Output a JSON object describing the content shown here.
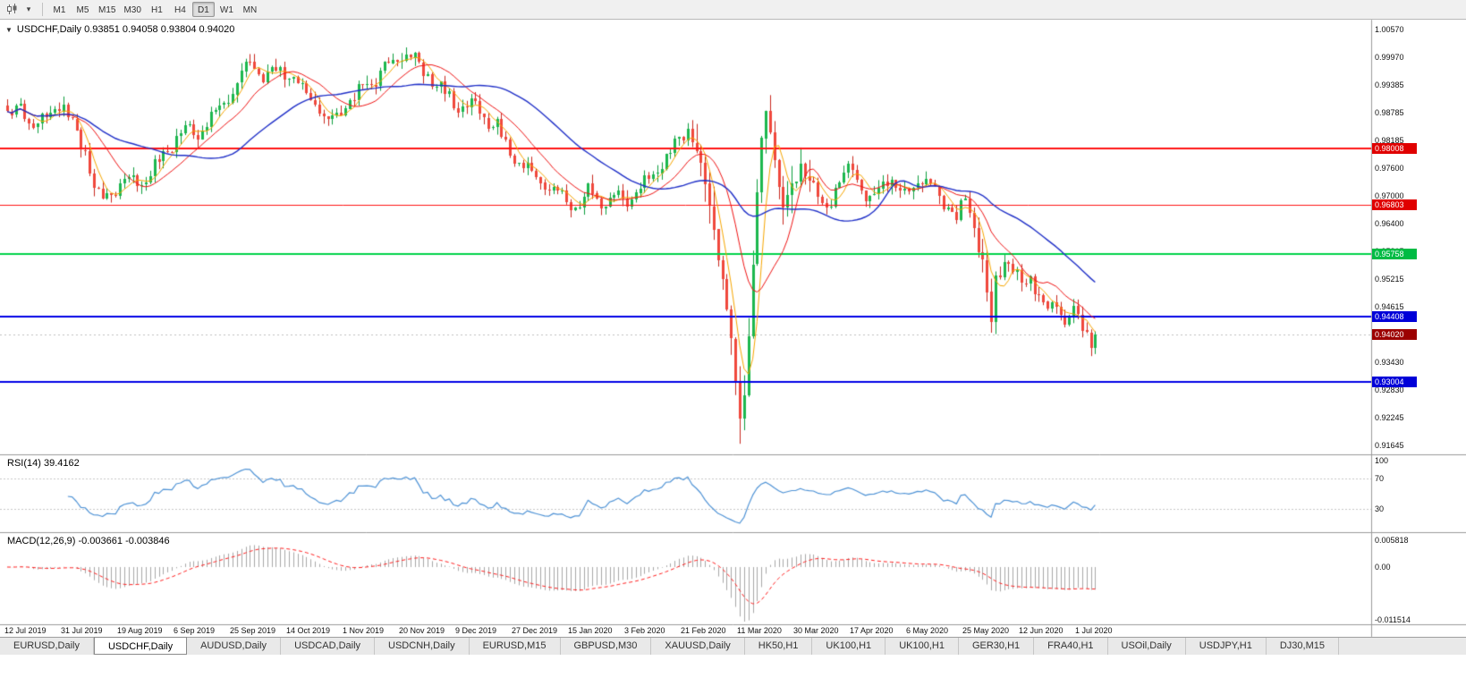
{
  "icons": {
    "one_click_toggle": "▼",
    "chart_type_dropdown": "▾"
  },
  "toolbar": {
    "timeframes": [
      {
        "label": "M1",
        "active": false
      },
      {
        "label": "M5",
        "active": false
      },
      {
        "label": "M15",
        "active": false
      },
      {
        "label": "M30",
        "active": false
      },
      {
        "label": "H1",
        "active": false
      },
      {
        "label": "H4",
        "active": false
      },
      {
        "label": "D1",
        "active": true
      },
      {
        "label": "W1",
        "active": false
      },
      {
        "label": "MN",
        "active": false
      }
    ]
  },
  "main_chart": {
    "title": "USDCHF,Daily 0.93851 0.94058 0.93804 0.94020",
    "ohlc": {
      "open": "0.93851",
      "high": "0.94058",
      "low": "0.93804",
      "close": "0.94020"
    },
    "price_axis_labels": [
      "1.00570",
      "0.99970",
      "0.99385",
      "0.98785",
      "0.98185",
      "0.97600",
      "0.97000",
      "0.96400",
      "0.95815",
      "0.95215",
      "0.94615",
      "0.94020",
      "0.93430",
      "0.92830",
      "0.92245",
      "0.91645"
    ],
    "hlines": [
      {
        "label": "0.98008",
        "price": 0.98008,
        "line": "#ff1414",
        "tag": "#e00000",
        "width": 2
      },
      {
        "label": "0.96803",
        "price": 0.96803,
        "line": "#ff1414",
        "tag": "#e00000",
        "width": 1
      },
      {
        "label": "0.95758",
        "price": 0.95758,
        "line": "#00d24a",
        "tag": "#00bb44",
        "width": 2
      },
      {
        "label": "0.94408",
        "price": 0.94408,
        "line": "#0000e6",
        "tag": "#0000d8",
        "width": 2
      },
      {
        "label": "0.93004",
        "price": 0.93004,
        "line": "#0000e6",
        "tag": "#0000d8",
        "width": 2
      }
    ],
    "current_price": {
      "label": "0.94020",
      "price": 0.9402,
      "tag": "#9c0000"
    }
  },
  "rsi_panel": {
    "label": "RSI(14) 39.4162",
    "axis_labels": [
      "100",
      "70",
      "30"
    ],
    "levels": [
      70,
      30
    ],
    "current": 39.4162
  },
  "macd_panel": {
    "label": "MACD(12,26,9) -0.003661 -0.003846",
    "axis_labels": [
      "0.005818",
      "0.00",
      "-0.011514"
    ],
    "current_macd": -0.003661,
    "current_signal": -0.003846
  },
  "date_axis": {
    "labels": [
      "12 Jul 2019",
      "31 Jul 2019",
      "19 Aug 2019",
      "6 Sep 2019",
      "25 Sep 2019",
      "14 Oct 2019",
      "1 Nov 2019",
      "20 Nov 2019",
      "9 Dec 2019",
      "27 Dec 2019",
      "15 Jan 2020",
      "3 Feb 2020",
      "21 Feb 2020",
      "11 Mar 2020",
      "30 Mar 2020",
      "17 Apr 2020",
      "6 May 2020",
      "25 May 2020",
      "12 Jun 2020",
      "1 Jul 2020"
    ]
  },
  "tabs": [
    {
      "label": "EURUSD,Daily",
      "active": false
    },
    {
      "label": "USDCHF,Daily",
      "active": true
    },
    {
      "label": "AUDUSD,Daily",
      "active": false
    },
    {
      "label": "USDCAD,Daily",
      "active": false
    },
    {
      "label": "USDCNH,Daily",
      "active": false
    },
    {
      "label": "EURUSD,M15",
      "active": false
    },
    {
      "label": "GBPUSD,M30",
      "active": false
    },
    {
      "label": "XAUUSD,Daily",
      "active": false
    },
    {
      "label": "HK50,H1",
      "active": false
    },
    {
      "label": "UK100,H1",
      "active": false
    },
    {
      "label": "UK100,H1",
      "active": false
    },
    {
      "label": "GER30,H1",
      "active": false
    },
    {
      "label": "FRA40,H1",
      "active": false
    },
    {
      "label": "USOil,Daily",
      "active": false
    },
    {
      "label": "USDJPY,H1",
      "active": false
    },
    {
      "label": "DJ30,M15",
      "active": false
    }
  ],
  "colors": {
    "up_candle": "#1cb84e",
    "up_wick": "#0d9e3e",
    "down_candle": "#f0483c",
    "down_wick": "#c9281e",
    "ma_fast": "#f7a600",
    "ma_mid": "#f01414",
    "ma_slow": "#2030c8",
    "rsi_line": "#4f93d6",
    "rsi_level": "#c8c8c8",
    "macd_hist": "#a8a8a8",
    "macd_signal": "#ff2020",
    "separator": "#9a9a9a",
    "current_line": "#c0c0c0"
  },
  "chart_data": [
    {
      "type": "candlestick",
      "title": "USDCHF Daily",
      "ylim": [
        0.91645,
        1.0057
      ],
      "candle_count": 252,
      "candles_per_label": 13,
      "last_ohlc": [
        0.93851,
        0.94058,
        0.93804,
        0.9402
      ],
      "crash_low": 0.9168,
      "close_anchors": [
        [
          0,
          0.987
        ],
        [
          3,
          0.9888
        ],
        [
          6,
          0.9845
        ],
        [
          9,
          0.9862
        ],
        [
          12,
          0.99
        ],
        [
          15,
          0.9855
        ],
        [
          18,
          0.9795
        ],
        [
          20,
          0.9718
        ],
        [
          22,
          0.9692
        ],
        [
          25,
          0.9715
        ],
        [
          28,
          0.9742
        ],
        [
          31,
          0.9728
        ],
        [
          34,
          0.9762
        ],
        [
          38,
          0.9812
        ],
        [
          41,
          0.9848
        ],
        [
          44,
          0.9828
        ],
        [
          47,
          0.987
        ],
        [
          50,
          0.9902
        ],
        [
          53,
          0.9942
        ],
        [
          56,
          0.9996
        ],
        [
          59,
          0.995
        ],
        [
          62,
          0.9972
        ],
        [
          65,
          0.9955
        ],
        [
          68,
          0.9932
        ],
        [
          71,
          0.9895
        ],
        [
          74,
          0.986
        ],
        [
          77,
          0.9882
        ],
        [
          80,
          0.9908
        ],
        [
          83,
          0.994
        ],
        [
          86,
          0.9962
        ],
        [
          89,
          0.999
        ],
        [
          92,
          1.0005
        ],
        [
          95,
          0.9978
        ],
        [
          98,
          0.9946
        ],
        [
          101,
          0.9922
        ],
        [
          104,
          0.989
        ],
        [
          107,
          0.99
        ],
        [
          110,
          0.987
        ],
        [
          113,
          0.985
        ],
        [
          116,
          0.979
        ],
        [
          119,
          0.9766
        ],
        [
          122,
          0.974
        ],
        [
          125,
          0.972
        ],
        [
          128,
          0.9696
        ],
        [
          131,
          0.967
        ],
        [
          134,
          0.971
        ],
        [
          137,
          0.9686
        ],
        [
          140,
          0.97
        ],
        [
          143,
          0.969
        ],
        [
          146,
          0.972
        ],
        [
          149,
          0.9746
        ],
        [
          152,
          0.9786
        ],
        [
          155,
          0.9822
        ],
        [
          157,
          0.9843
        ],
        [
          159,
          0.9803
        ],
        [
          161,
          0.9722
        ],
        [
          163,
          0.9632
        ],
        [
          165,
          0.9522
        ],
        [
          167,
          0.9392
        ],
        [
          168,
          0.9298
        ],
        [
          169,
          0.9226
        ],
        [
          170,
          0.9272
        ],
        [
          171,
          0.9402
        ],
        [
          172,
          0.9555
        ],
        [
          173,
          0.9702
        ],
        [
          174,
          0.9822
        ],
        [
          175,
          0.9882
        ],
        [
          176,
          0.984
        ],
        [
          177,
          0.978
        ],
        [
          178,
          0.972
        ],
        [
          179,
          0.967
        ],
        [
          181,
          0.972
        ],
        [
          183,
          0.977
        ],
        [
          185,
          0.9736
        ],
        [
          187,
          0.9696
        ],
        [
          189,
          0.967
        ],
        [
          191,
          0.9716
        ],
        [
          193,
          0.974
        ],
        [
          195,
          0.9756
        ],
        [
          197,
          0.972
        ],
        [
          199,
          0.9686
        ],
        [
          201,
          0.971
        ],
        [
          203,
          0.974
        ],
        [
          205,
          0.972
        ],
        [
          207,
          0.9696
        ],
        [
          209,
          0.9716
        ],
        [
          211,
          0.974
        ],
        [
          213,
          0.9726
        ],
        [
          215,
          0.97
        ],
        [
          217,
          0.968
        ],
        [
          219,
          0.9652
        ],
        [
          221,
          0.969
        ],
        [
          223,
          0.964
        ],
        [
          225,
          0.9556
        ],
        [
          226,
          0.9482
        ],
        [
          227,
          0.9425
        ],
        [
          228,
          0.9525
        ],
        [
          230,
          0.956
        ],
        [
          232,
          0.954
        ],
        [
          234,
          0.951
        ],
        [
          236,
          0.953
        ],
        [
          238,
          0.9482
        ],
        [
          240,
          0.945
        ],
        [
          242,
          0.947
        ],
        [
          244,
          0.943
        ],
        [
          246,
          0.9452
        ],
        [
          248,
          0.942
        ],
        [
          250,
          0.9386
        ],
        [
          251,
          0.9402
        ]
      ],
      "moving_averages": [
        {
          "period": 5,
          "color_key": "ma_fast"
        },
        {
          "period": 13,
          "color_key": "ma_mid"
        },
        {
          "period": 34,
          "color_key": "ma_slow"
        }
      ],
      "hline_prices": [
        0.98008,
        0.96803,
        0.95758,
        0.94408,
        0.93004
      ]
    },
    {
      "type": "line",
      "name": "RSI(14)",
      "period": 14,
      "ylim": [
        0,
        100
      ],
      "levels": [
        70,
        30
      ],
      "current": 39.4162
    },
    {
      "type": "bar",
      "name": "MACD(12,26,9)",
      "params": [
        12,
        26,
        9
      ],
      "axis_max": 0.005818,
      "axis_min": -0.011514,
      "current": [
        -0.003661,
        -0.003846
      ]
    }
  ]
}
